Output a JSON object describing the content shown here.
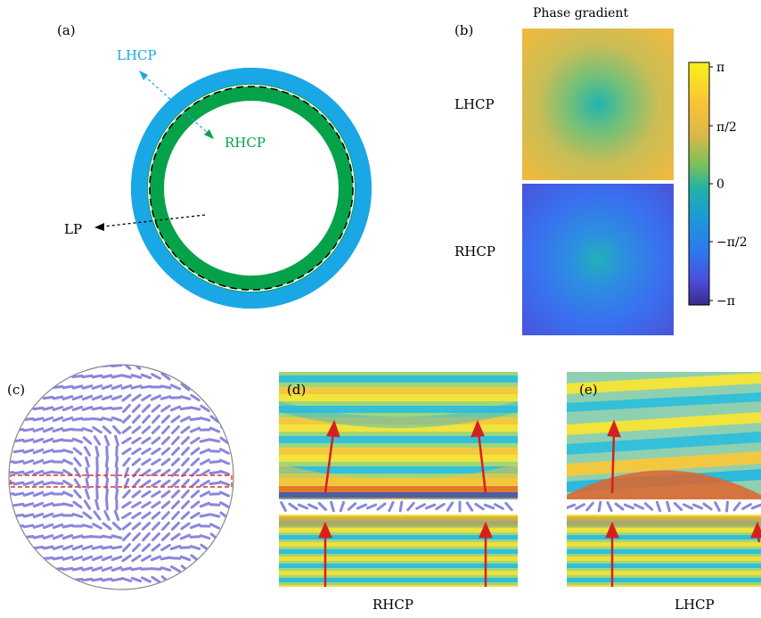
{
  "panel_a": {
    "label": "(a)",
    "outer_label": "LHCP",
    "inner_label": "RHCP",
    "dashed_label": "LP",
    "colors": {
      "outer": "#1aa7e6",
      "inner": "#06a24a",
      "lhcp_text": "#1aa7e6",
      "rhcp_text": "#06a24a"
    }
  },
  "panel_b": {
    "label": "(b)",
    "title": "Phase gradient",
    "rows": [
      "LHCP",
      "RHCP"
    ],
    "colorbar_ticks": [
      "π",
      "π/2",
      "0",
      "−π/2",
      "−π"
    ]
  },
  "panel_c": {
    "label": "(c)"
  },
  "panel_d": {
    "label": "(d)",
    "caption": "RHCP"
  },
  "panel_e": {
    "label": "(e)",
    "caption": "LHCP"
  }
}
